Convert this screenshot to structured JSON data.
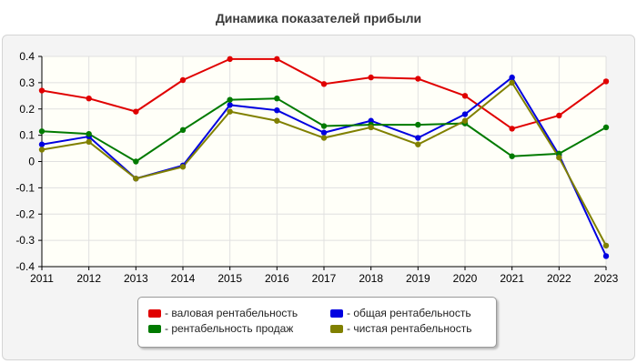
{
  "chart_data": {
    "type": "line",
    "title": "Динамика показателей прибыли",
    "xlabel": "",
    "ylabel": "",
    "categories": [
      "2011",
      "2012",
      "2013",
      "2014",
      "2015",
      "2016",
      "2017",
      "2018",
      "2019",
      "2020",
      "2021",
      "2022",
      "2023"
    ],
    "ylim": [
      -0.4,
      0.4
    ],
    "yticks": [
      0.4,
      0.3,
      0.2,
      0.1,
      0,
      -0.1,
      -0.2,
      -0.3,
      -0.4
    ],
    "ytick_labels": [
      "0.4",
      "0.3",
      "0.2",
      "0.1",
      "0",
      "-0.1",
      "-0.2",
      "-0.3",
      "-0.4"
    ],
    "grid": true,
    "legend_position": "bottom-center",
    "series": [
      {
        "name": "- валовая рентабельность",
        "color": "#e00000",
        "values": [
          0.27,
          0.24,
          0.19,
          0.31,
          0.39,
          0.39,
          0.295,
          0.32,
          0.315,
          0.25,
          0.125,
          0.175,
          0.305
        ]
      },
      {
        "name": "- общая рентабельность",
        "color": "#0000e0",
        "values": [
          0.065,
          0.095,
          -0.065,
          -0.015,
          0.215,
          0.195,
          0.11,
          0.155,
          0.09,
          0.18,
          0.32,
          0.025,
          -0.36
        ]
      },
      {
        "name": "- рентабельность продаж",
        "color": "#007a00",
        "values": [
          0.115,
          0.105,
          0.0,
          0.12,
          0.235,
          0.24,
          0.135,
          0.14,
          0.14,
          0.145,
          0.02,
          0.03,
          0.13
        ]
      },
      {
        "name": "- чистая рентабельность",
        "color": "#808000",
        "values": [
          0.045,
          0.075,
          -0.065,
          -0.02,
          0.19,
          0.155,
          0.09,
          0.13,
          0.065,
          0.155,
          0.3,
          0.015,
          -0.32
        ]
      }
    ]
  },
  "colors": {
    "plot_bg": "#fffff8",
    "grid": "#e0e0e0",
    "axis": "#000000",
    "panel_bg": "#f4f4f4"
  }
}
